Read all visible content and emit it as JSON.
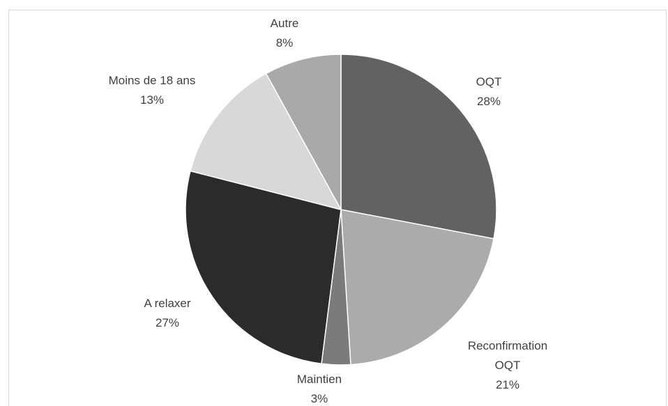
{
  "chart_data": {
    "type": "pie",
    "categories": [
      "OQT",
      "Reconfirmation OQT",
      "Maintien",
      "A relaxer",
      "Moins de 18 ans",
      "Autre"
    ],
    "values": [
      28,
      21,
      3,
      27,
      13,
      8
    ],
    "value_labels": [
      "28%",
      "21%",
      "3%",
      "27%",
      "13%",
      "8%"
    ],
    "colors": [
      "#626262",
      "#ababab",
      "#7b7b7b",
      "#2b2b2b",
      "#d8d8d8",
      "#a9a9a9"
    ]
  }
}
